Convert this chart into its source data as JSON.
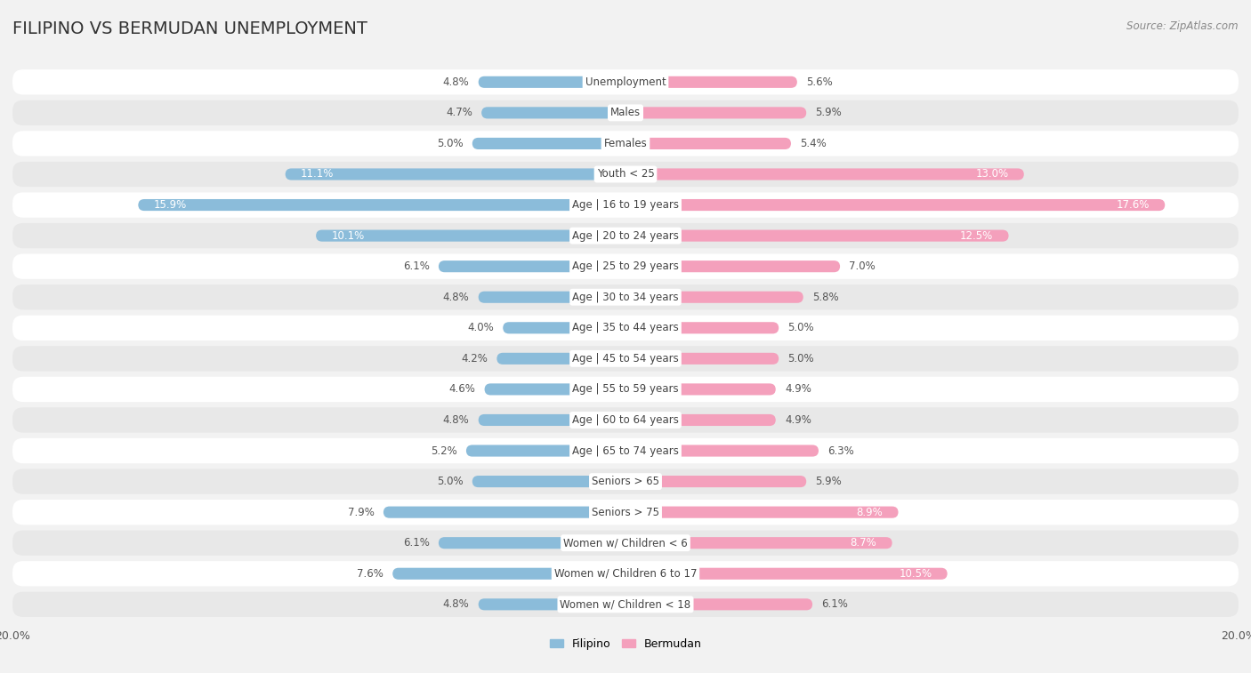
{
  "title": "FILIPINO VS BERMUDAN UNEMPLOYMENT",
  "source": "Source: ZipAtlas.com",
  "categories": [
    "Unemployment",
    "Males",
    "Females",
    "Youth < 25",
    "Age | 16 to 19 years",
    "Age | 20 to 24 years",
    "Age | 25 to 29 years",
    "Age | 30 to 34 years",
    "Age | 35 to 44 years",
    "Age | 45 to 54 years",
    "Age | 55 to 59 years",
    "Age | 60 to 64 years",
    "Age | 65 to 74 years",
    "Seniors > 65",
    "Seniors > 75",
    "Women w/ Children < 6",
    "Women w/ Children 6 to 17",
    "Women w/ Children < 18"
  ],
  "filipino": [
    4.8,
    4.7,
    5.0,
    11.1,
    15.9,
    10.1,
    6.1,
    4.8,
    4.0,
    4.2,
    4.6,
    4.8,
    5.2,
    5.0,
    7.9,
    6.1,
    7.6,
    4.8
  ],
  "bermudan": [
    5.6,
    5.9,
    5.4,
    13.0,
    17.6,
    12.5,
    7.0,
    5.8,
    5.0,
    5.0,
    4.9,
    4.9,
    6.3,
    5.9,
    8.9,
    8.7,
    10.5,
    6.1
  ],
  "filipino_color": "#8bbcda",
  "bermudan_color": "#f4a0bc",
  "background_color": "#f2f2f2",
  "row_bg_light": "#ffffff",
  "row_bg_dark": "#e8e8e8",
  "axis_limit": 20.0,
  "legend_filipino": "Filipino",
  "legend_bermudan": "Bermudan",
  "label_fontsize": 8.5,
  "value_fontsize": 8.5,
  "title_fontsize": 14,
  "source_fontsize": 8.5
}
